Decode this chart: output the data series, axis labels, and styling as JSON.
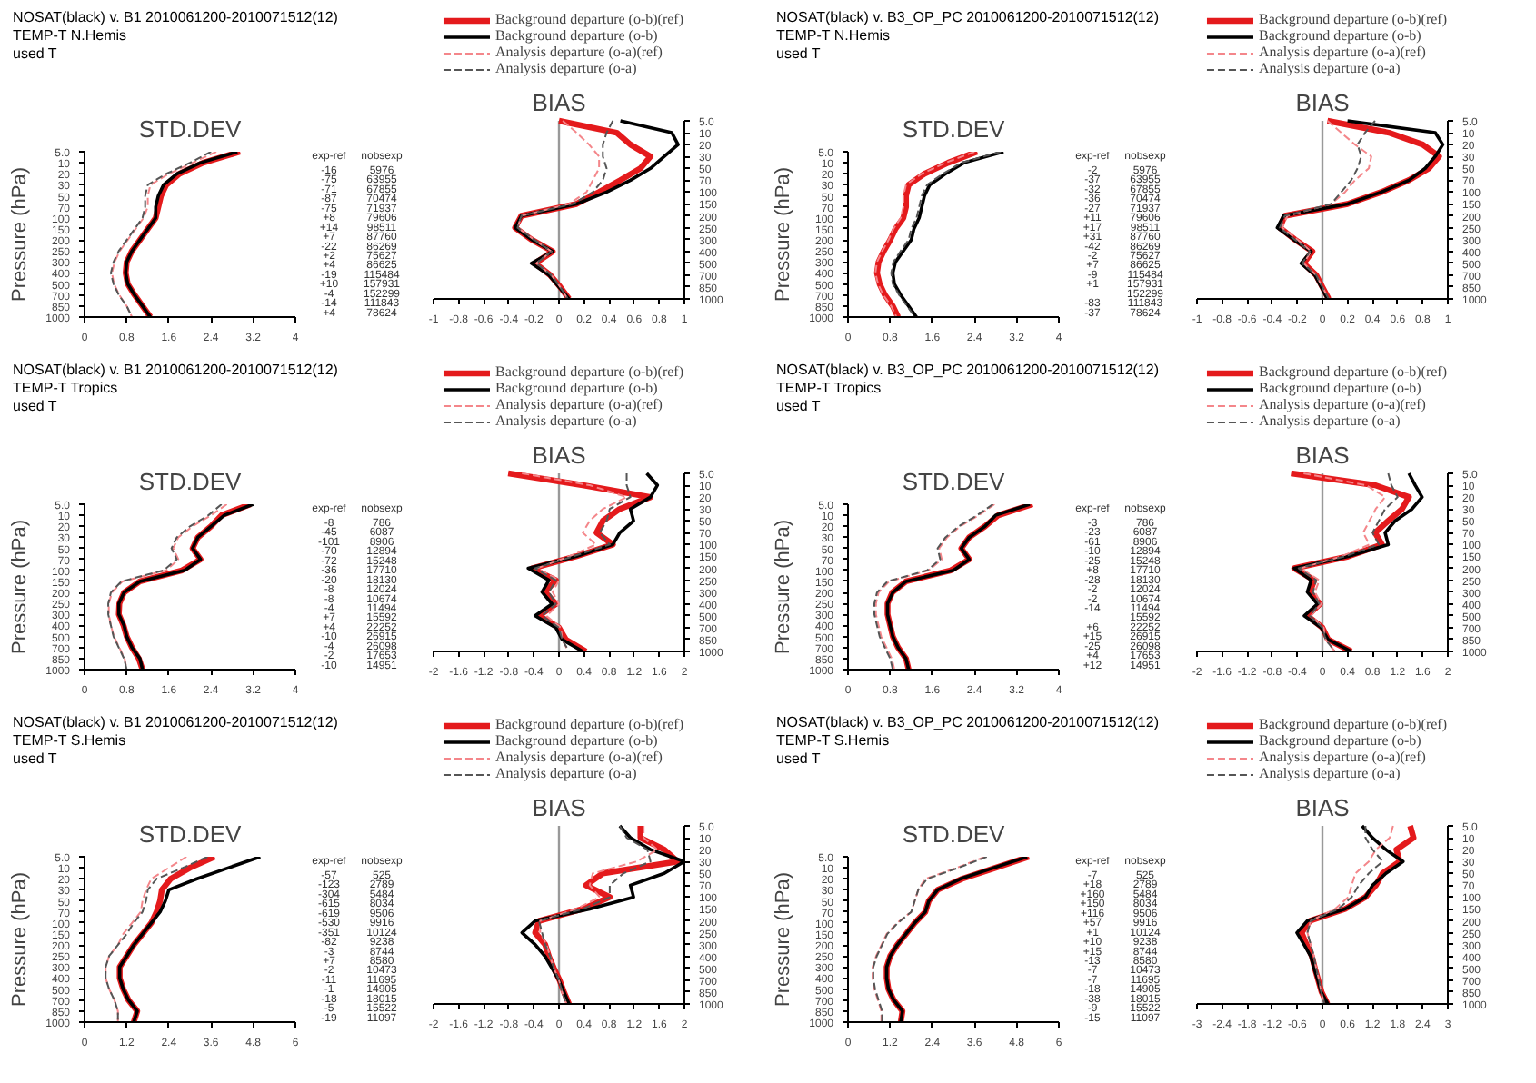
{
  "chart_data": [
    {
      "type": "other",
      "title": "NOSAT(black)  v. B1 2010061200-2010071512(12)",
      "subtitle": "TEMP-T  N.Hemis",
      "annotations": [
        "used T"
      ]
    },
    {
      "type": "line",
      "orientation": "horizontal",
      "title": "STD.DEV",
      "ylabel": "Pressure (hPa)",
      "categories": [
        "5.0",
        "10",
        "20",
        "30",
        "50",
        "70",
        "100",
        "150",
        "200",
        "250",
        "300",
        "400",
        "500",
        "700",
        "850",
        "1000"
      ],
      "xlim": [
        0,
        4
      ],
      "xticks": [
        0,
        0.8,
        1.6,
        2.4,
        3.2,
        4
      ],
      "series": [
        {
          "color": "#e41a1c",
          "line_style": "solid",
          "values": [
            2.95,
            2.25,
            1.8,
            1.55,
            1.45,
            1.4,
            1.35,
            1.2,
            1.05,
            0.9,
            0.8,
            0.78,
            0.82,
            0.95,
            1.1,
            1.25
          ]
        },
        {
          "color": "#000000",
          "line_style": "solid",
          "values": [
            2.9,
            2.2,
            1.75,
            1.5,
            1.4,
            1.35,
            1.35,
            1.2,
            1.05,
            0.9,
            0.8,
            0.78,
            0.82,
            0.95,
            1.1,
            1.25
          ]
        },
        {
          "color": "#f4868a",
          "line_style": "dashed",
          "values": [
            2.5,
            2.05,
            1.6,
            1.25,
            1.2,
            1.2,
            1.12,
            0.97,
            0.82,
            0.67,
            0.57,
            0.52,
            0.56,
            0.66,
            0.8,
            0.9
          ]
        },
        {
          "color": "#555555",
          "line_style": "dashed",
          "values": [
            2.4,
            2.0,
            1.55,
            1.2,
            1.15,
            1.15,
            1.1,
            0.95,
            0.8,
            0.65,
            0.55,
            0.5,
            0.55,
            0.65,
            0.8,
            0.9
          ]
        }
      ]
    },
    {
      "type": "other",
      "categories": [
        "exp-ref",
        "nobsexp"
      ],
      "cell_labels": [
        [
          "-16",
          "5976"
        ],
        [
          "-75",
          "63955"
        ],
        [
          "-71",
          "67855"
        ],
        [
          "-87",
          "70474"
        ],
        [
          "-75",
          "71937"
        ],
        [
          "+8",
          "79606"
        ],
        [
          "+14",
          "98511"
        ],
        [
          "+7",
          "87760"
        ],
        [
          "-22",
          "86269"
        ],
        [
          "+2",
          "75627"
        ],
        [
          "+4",
          "86625"
        ],
        [
          "-19",
          "115484"
        ],
        [
          "+10",
          "157931"
        ],
        [
          "-4",
          "152299"
        ],
        [
          "-14",
          "111843"
        ],
        [
          "+4",
          "78624"
        ]
      ]
    },
    {
      "type": "line",
      "orientation": "horizontal",
      "title": "BIAS",
      "legend": "top right",
      "categories": [
        "5.0",
        "10",
        "20",
        "30",
        "50",
        "70",
        "100",
        "150",
        "200",
        "250",
        "300",
        "400",
        "500",
        "700",
        "850",
        "1000"
      ],
      "xlim": [
        -1,
        1
      ],
      "xticks": [
        -1,
        -0.8,
        -0.6,
        -0.4,
        -0.2,
        0,
        0.2,
        0.4,
        0.6,
        0.8,
        1
      ],
      "ref_lines": [
        {
          "axis": "x",
          "value": 0,
          "color": "#999999"
        }
      ],
      "series": [
        {
          "name": "Background departure (o-b)(ref)",
          "color": "#e41a1c",
          "line_style": "solid",
          "values": [
            0,
            0.46,
            0.57,
            0.73,
            0.65,
            0.49,
            0.32,
            0.14,
            -0.3,
            -0.35,
            -0.22,
            -0.05,
            -0.19,
            -0.07,
            0.01,
            0.08
          ]
        },
        {
          "name": "Background departure (o-b)",
          "color": "#000000",
          "line_style": "solid",
          "values": [
            0.49,
            0.9,
            0.95,
            0.84,
            0.73,
            0.57,
            0.38,
            0.14,
            -0.3,
            -0.35,
            -0.22,
            -0.05,
            -0.22,
            -0.08,
            0,
            0.08
          ]
        },
        {
          "name": "Analysis departure (o-a)(ref)",
          "color": "#f4868a",
          "line_style": "dashed",
          "values": [
            0.03,
            0.14,
            0.24,
            0.32,
            0.32,
            0.27,
            0.22,
            0.08,
            -0.3,
            -0.33,
            -0.2,
            -0.06,
            -0.18,
            -0.06,
            0.01,
            0.07
          ]
        },
        {
          "name": "Analysis departure (o-a)",
          "color": "#555555",
          "line_style": "dashed",
          "values": [
            0.43,
            0.38,
            0.35,
            0.35,
            0.38,
            0.35,
            0.27,
            0.11,
            -0.3,
            -0.33,
            -0.2,
            -0.06,
            -0.18,
            -0.06,
            0.01,
            0.07
          ]
        }
      ]
    },
    {
      "type": "other",
      "title": "NOSAT(black)  v. B3_OP_PC 2010061200-2010071512(12)",
      "subtitle": "TEMP-T  N.Hemis",
      "annotations": [
        "used T"
      ]
    },
    {
      "type": "line",
      "orientation": "horizontal",
      "title": "STD.DEV",
      "ylabel": "Pressure (hPa)",
      "categories": [
        "5.0",
        "10",
        "20",
        "30",
        "50",
        "70",
        "100",
        "150",
        "200",
        "250",
        "300",
        "400",
        "500",
        "700",
        "850",
        "1000"
      ],
      "xlim": [
        0,
        4
      ],
      "xticks": [
        0,
        0.8,
        1.6,
        2.4,
        3.2,
        4
      ],
      "series": [
        {
          "color": "#e41a1c",
          "line_style": "solid",
          "values": [
            2.45,
            1.9,
            1.45,
            1.15,
            1.1,
            1.1,
            1.05,
            0.9,
            0.8,
            0.68,
            0.58,
            0.55,
            0.6,
            0.7,
            0.85,
            0.95
          ]
        },
        {
          "color": "#000000",
          "line_style": "solid",
          "values": [
            2.95,
            2.2,
            1.85,
            1.55,
            1.45,
            1.4,
            1.35,
            1.25,
            1.2,
            1.05,
            0.9,
            0.85,
            0.88,
            1.0,
            1.15,
            1.3
          ]
        },
        {
          "color": "#f4868a",
          "line_style": "dashed",
          "values": [
            2.4,
            1.85,
            1.4,
            1.1,
            1.05,
            1.05,
            1.0,
            0.86,
            0.77,
            0.65,
            0.55,
            0.52,
            0.57,
            0.67,
            0.82,
            0.92
          ]
        },
        {
          "color": "#555555",
          "line_style": "dashed",
          "values": [
            2.9,
            2.15,
            1.8,
            1.5,
            1.4,
            1.35,
            1.3,
            1.2,
            1.15,
            1.0,
            0.86,
            0.82,
            0.85,
            0.97,
            1.12,
            1.27
          ]
        }
      ]
    },
    {
      "type": "other",
      "categories": [
        "exp-ref",
        "nobsexp"
      ],
      "cell_labels": [
        [
          "-2",
          "5976"
        ],
        [
          "-37",
          "63955"
        ],
        [
          "-32",
          "67855"
        ],
        [
          "-36",
          "70474"
        ],
        [
          "-27",
          "71937"
        ],
        [
          "+11",
          "79606"
        ],
        [
          "+17",
          "98511"
        ],
        [
          "+31",
          "87760"
        ],
        [
          "-42",
          "86269"
        ],
        [
          "-2",
          "75627"
        ],
        [
          "+7",
          "86625"
        ],
        [
          "-9",
          "115484"
        ],
        [
          "+1",
          "157931"
        ],
        [
          null,
          "152299"
        ],
        [
          "-83",
          "111843"
        ],
        [
          "-37",
          "78624"
        ]
      ]
    },
    {
      "type": "line",
      "orientation": "horizontal",
      "title": "BIAS",
      "legend": "top right",
      "categories": [
        "5.0",
        "10",
        "20",
        "30",
        "50",
        "70",
        "100",
        "150",
        "200",
        "250",
        "300",
        "400",
        "500",
        "700",
        "850",
        "1000"
      ],
      "xlim": [
        -1,
        1
      ],
      "xticks": [
        -1,
        -0.8,
        -0.6,
        -0.4,
        -0.2,
        0,
        0.2,
        0.4,
        0.6,
        0.8,
        1
      ],
      "ref_lines": [
        {
          "axis": "x",
          "value": 0,
          "color": "#999999"
        }
      ],
      "series": [
        {
          "name": "Background departure (o-b)(ref)",
          "color": "#e41a1c",
          "line_style": "solid",
          "values": [
            0.04,
            0.53,
            0.8,
            0.93,
            0.85,
            0.69,
            0.47,
            0.2,
            -0.3,
            -0.34,
            -0.22,
            -0.08,
            -0.15,
            -0.05,
            0,
            0.05
          ]
        },
        {
          "name": "Background departure (o-b)",
          "color": "#000000",
          "line_style": "solid",
          "values": [
            0.2,
            0.9,
            0.96,
            0.9,
            0.82,
            0.69,
            0.47,
            0.2,
            -0.31,
            -0.36,
            -0.23,
            -0.09,
            -0.17,
            -0.06,
            -0.01,
            0.04
          ]
        },
        {
          "name": "Analysis departure (o-a)(ref)",
          "color": "#f4868a",
          "line_style": "dashed",
          "values": [
            0.04,
            0.15,
            0.26,
            0.39,
            0.37,
            0.26,
            0.18,
            0.07,
            -0.28,
            -0.32,
            -0.2,
            -0.09,
            -0.15,
            -0.05,
            0,
            0.05
          ]
        },
        {
          "name": "Analysis departure (o-a)",
          "color": "#555555",
          "line_style": "dashed",
          "values": [
            0.42,
            0.34,
            0.28,
            0.31,
            0.28,
            0.23,
            0.15,
            0.07,
            -0.3,
            -0.34,
            -0.22,
            -0.1,
            -0.16,
            -0.05,
            0,
            0.05
          ]
        }
      ]
    },
    {
      "type": "other",
      "title": "NOSAT(black)  v. B1 2010061200-2010071512(12)",
      "subtitle": "TEMP-T  Tropics",
      "annotations": [
        "used T"
      ]
    },
    {
      "type": "line",
      "orientation": "horizontal",
      "title": "STD.DEV",
      "ylabel": "Pressure (hPa)",
      "categories": [
        "5.0",
        "10",
        "20",
        "30",
        "50",
        "70",
        "100",
        "150",
        "200",
        "250",
        "300",
        "400",
        "500",
        "700",
        "850",
        "1000"
      ],
      "xlim": [
        0,
        4
      ],
      "xticks": [
        0,
        0.8,
        1.6,
        2.4,
        3.2,
        4
      ],
      "series": [
        {
          "color": "#e41a1c",
          "line_style": "solid",
          "values": [
            3.15,
            2.6,
            2.4,
            2.15,
            2.05,
            2.2,
            1.85,
            1.05,
            0.75,
            0.66,
            0.65,
            0.74,
            0.8,
            0.9,
            1.03,
            1.1
          ]
        },
        {
          "color": "#000000",
          "line_style": "solid",
          "values": [
            3.2,
            2.65,
            2.4,
            2.15,
            2.05,
            2.2,
            1.9,
            1.05,
            0.75,
            0.65,
            0.65,
            0.75,
            0.8,
            0.9,
            1.05,
            1.1
          ]
        },
        {
          "color": "#f4868a",
          "line_style": "dashed",
          "values": [
            2.7,
            2.4,
            2.05,
            1.78,
            1.68,
            1.78,
            1.55,
            0.72,
            0.52,
            0.46,
            0.46,
            0.5,
            0.56,
            0.66,
            0.76,
            0.8
          ]
        },
        {
          "color": "#555555",
          "line_style": "dashed",
          "values": [
            2.6,
            2.35,
            2.0,
            1.75,
            1.65,
            1.75,
            1.5,
            0.7,
            0.5,
            0.45,
            0.45,
            0.5,
            0.55,
            0.65,
            0.75,
            0.8
          ]
        }
      ]
    },
    {
      "type": "other",
      "categories": [
        "exp-ref",
        "nobsexp"
      ],
      "cell_labels": [
        [
          "-8",
          "786"
        ],
        [
          "-45",
          "6087"
        ],
        [
          "-101",
          "8906"
        ],
        [
          "-70",
          "12894"
        ],
        [
          "-72",
          "15248"
        ],
        [
          "-36",
          "17710"
        ],
        [
          "-20",
          "18130"
        ],
        [
          "-8",
          "12024"
        ],
        [
          "-8",
          "10674"
        ],
        [
          "-4",
          "11494"
        ],
        [
          "+7",
          "15592"
        ],
        [
          "+4",
          "22252"
        ],
        [
          "-10",
          "26915"
        ],
        [
          "-4",
          "26098"
        ],
        [
          "-2",
          "17653"
        ],
        [
          "-10",
          "14951"
        ]
      ]
    },
    {
      "type": "line",
      "orientation": "horizontal",
      "title": "BIAS",
      "legend": "top right",
      "categories": [
        "5.0",
        "10",
        "20",
        "30",
        "50",
        "70",
        "100",
        "150",
        "200",
        "250",
        "300",
        "400",
        "500",
        "700",
        "850",
        "1000"
      ],
      "xlim": [
        -2,
        2
      ],
      "xticks": [
        -2,
        -1.6,
        -1.2,
        -0.8,
        -0.4,
        0,
        0.4,
        0.8,
        1.2,
        1.6,
        2
      ],
      "ref_lines": [
        {
          "axis": "x",
          "value": 0,
          "color": "#999999"
        }
      ],
      "series": [
        {
          "name": "Background departure (o-b)(ref)",
          "color": "#e41a1c",
          "line_style": "solid",
          "values": [
            -0.81,
            0.38,
            1.46,
            0.97,
            0.7,
            0.6,
            0.86,
            0.27,
            -0.43,
            -0.05,
            -0.22,
            -0.05,
            -0.32,
            0,
            0.11,
            0.43
          ]
        },
        {
          "name": "Background departure (o-b)",
          "color": "#000000",
          "line_style": "solid",
          "values": [
            1.4,
            1.57,
            1.46,
            1.14,
            1.19,
            0.97,
            0.86,
            0.27,
            -0.49,
            -0.16,
            -0.27,
            -0.11,
            -0.38,
            -0.05,
            0.05,
            0.38
          ]
        },
        {
          "name": "Analysis departure (o-a)(ref)",
          "color": "#f4868a",
          "line_style": "dashed",
          "values": [
            -0.59,
            0.49,
            1.08,
            0.7,
            0.49,
            0.38,
            0.59,
            0.16,
            -0.35,
            0,
            -0.1,
            0,
            -0.2,
            0.03,
            0.05,
            0.15
          ]
        },
        {
          "name": "Analysis departure (o-a)",
          "color": "#555555",
          "line_style": "dashed",
          "values": [
            1.08,
            1.08,
            1.14,
            0.81,
            0.76,
            0.65,
            0.81,
            0.22,
            -0.38,
            -0.05,
            -0.16,
            -0.05,
            -0.27,
            0,
            0.05,
            0.16
          ]
        }
      ]
    },
    {
      "type": "other",
      "title": "NOSAT(black)  v. B3_OP_PC 2010061200-2010071512(12)",
      "subtitle": "TEMP-T  Tropics",
      "annotations": [
        "used T"
      ]
    },
    {
      "type": "line",
      "orientation": "horizontal",
      "title": "STD.DEV",
      "ylabel": "Pressure (hPa)",
      "categories": [
        "5.0",
        "10",
        "20",
        "30",
        "50",
        "70",
        "100",
        "150",
        "200",
        "250",
        "300",
        "400",
        "500",
        "700",
        "850",
        "1000"
      ],
      "xlim": [
        0,
        4
      ],
      "xticks": [
        0,
        0.8,
        1.6,
        2.4,
        3.2,
        4
      ],
      "series": [
        {
          "color": "#e41a1c",
          "line_style": "solid",
          "values": [
            3.5,
            2.85,
            2.6,
            2.3,
            2.15,
            2.3,
            1.95,
            1.1,
            0.84,
            0.75,
            0.75,
            0.8,
            0.85,
            0.95,
            1.1,
            1.15
          ]
        },
        {
          "color": "#000000",
          "line_style": "solid",
          "values": [
            3.45,
            2.8,
            2.6,
            2.3,
            2.15,
            2.3,
            2.0,
            1.1,
            0.85,
            0.75,
            0.75,
            0.8,
            0.85,
            0.95,
            1.1,
            1.15
          ]
        },
        {
          "color": "#f4868a",
          "line_style": "dashed",
          "values": [
            2.78,
            2.48,
            2.13,
            1.88,
            1.73,
            1.78,
            1.53,
            0.78,
            0.58,
            0.53,
            0.53,
            0.58,
            0.63,
            0.73,
            0.83,
            0.88
          ]
        },
        {
          "color": "#555555",
          "line_style": "dashed",
          "values": [
            2.75,
            2.45,
            2.1,
            1.85,
            1.7,
            1.75,
            1.5,
            0.75,
            0.55,
            0.5,
            0.5,
            0.55,
            0.6,
            0.7,
            0.8,
            0.85
          ]
        }
      ]
    },
    {
      "type": "other",
      "categories": [
        "exp-ref",
        "nobsexp"
      ],
      "cell_labels": [
        [
          "-3",
          "786"
        ],
        [
          "-23",
          "6087"
        ],
        [
          "-61",
          "8906"
        ],
        [
          "-10",
          "12894"
        ],
        [
          "-25",
          "15248"
        ],
        [
          "+8",
          "17710"
        ],
        [
          "-28",
          "18130"
        ],
        [
          "-2",
          "12024"
        ],
        [
          "-2",
          "10674"
        ],
        [
          "-14",
          "11494"
        ],
        [
          null,
          "15592"
        ],
        [
          "+6",
          "22252"
        ],
        [
          "+15",
          "26915"
        ],
        [
          "-25",
          "26098"
        ],
        [
          "+4",
          "17653"
        ],
        [
          "+12",
          "14951"
        ]
      ]
    },
    {
      "type": "line",
      "orientation": "horizontal",
      "title": "BIAS",
      "legend": "top right",
      "categories": [
        "5.0",
        "10",
        "20",
        "30",
        "50",
        "70",
        "100",
        "150",
        "200",
        "250",
        "300",
        "400",
        "500",
        "700",
        "850",
        "1000"
      ],
      "xlim": [
        -2,
        2
      ],
      "xticks": [
        -2,
        -1.6,
        -1.2,
        -0.8,
        -0.4,
        0,
        0.4,
        0.8,
        1.2,
        1.6,
        2
      ],
      "ref_lines": [
        {
          "axis": "x",
          "value": 0,
          "color": "#999999"
        }
      ],
      "series": [
        {
          "name": "Background departure (o-b)(ref)",
          "color": "#e41a1c",
          "line_style": "solid",
          "values": [
            -0.5,
            0.84,
            1.38,
            1.27,
            1.05,
            0.84,
            0.95,
            0.41,
            -0.45,
            -0.13,
            -0.2,
            -0.04,
            -0.24,
            0,
            0.09,
            0.46
          ]
        },
        {
          "name": "Background departure (o-b)",
          "color": "#000000",
          "line_style": "solid",
          "values": [
            1.38,
            1.48,
            1.59,
            1.43,
            1.16,
            1.0,
            1.05,
            0.41,
            -0.45,
            -0.18,
            -0.24,
            -0.08,
            -0.29,
            -0.02,
            0.09,
            0.46
          ]
        },
        {
          "name": "Analysis departure (o-a)(ref)",
          "color": "#f4868a",
          "line_style": "dashed",
          "values": [
            -0.3,
            0.7,
            1.0,
            0.85,
            0.75,
            0.65,
            0.75,
            0.3,
            -0.35,
            -0.05,
            -0.12,
            -0.02,
            -0.18,
            0.02,
            0.05,
            0.2
          ]
        },
        {
          "name": "Analysis departure (o-a)",
          "color": "#555555",
          "line_style": "dashed",
          "values": [
            1.05,
            1.1,
            1.2,
            1.0,
            0.9,
            0.8,
            0.9,
            0.35,
            -0.38,
            -0.1,
            -0.15,
            -0.05,
            -0.2,
            0,
            0.05,
            0.2
          ]
        }
      ]
    },
    {
      "type": "other",
      "title": "NOSAT(black)  v. B1 2010061200-2010071512(12)",
      "subtitle": "TEMP-T  S.Hemis",
      "annotations": [
        "used T"
      ]
    },
    {
      "type": "line",
      "orientation": "horizontal",
      "title": "STD.DEV",
      "ylabel": "Pressure (hPa)",
      "categories": [
        "5.0",
        "10",
        "20",
        "30",
        "50",
        "70",
        "100",
        "150",
        "200",
        "250",
        "300",
        "400",
        "500",
        "700",
        "850",
        "1000"
      ],
      "xlim": [
        0,
        6
      ],
      "xticks": [
        0,
        1.2,
        2.4,
        3.6,
        4.8,
        6
      ],
      "series": [
        {
          "color": "#e41a1c",
          "line_style": "solid",
          "values": [
            3.7,
            3.0,
            2.45,
            2.2,
            2.15,
            2.05,
            1.9,
            1.65,
            1.4,
            1.2,
            1.0,
            1.0,
            1.1,
            1.25,
            1.5,
            1.4
          ]
        },
        {
          "color": "#000000",
          "line_style": "solid",
          "values": [
            5.0,
            4.1,
            3.2,
            2.4,
            2.3,
            2.15,
            1.9,
            1.65,
            1.4,
            1.2,
            1.0,
            1.0,
            1.1,
            1.25,
            1.5,
            1.4
          ]
        },
        {
          "color": "#f4868a",
          "line_style": "dashed",
          "values": [
            2.9,
            2.4,
            1.9,
            1.75,
            1.65,
            1.6,
            1.35,
            1.1,
            0.95,
            0.7,
            0.6,
            0.6,
            0.7,
            0.85,
            0.95,
            0.95
          ]
        },
        {
          "color": "#555555",
          "line_style": "dashed",
          "values": [
            3.5,
            2.8,
            2.05,
            1.8,
            1.75,
            1.65,
            1.4,
            1.2,
            0.95,
            0.7,
            0.6,
            0.6,
            0.7,
            0.85,
            0.95,
            0.95
          ]
        }
      ]
    },
    {
      "type": "other",
      "categories": [
        "exp-ref",
        "nobsexp"
      ],
      "cell_labels": [
        [
          "-57",
          "525"
        ],
        [
          "-123",
          "2789"
        ],
        [
          "-304",
          "5484"
        ],
        [
          "-615",
          "8034"
        ],
        [
          "-619",
          "9506"
        ],
        [
          "-530",
          "9916"
        ],
        [
          "-351",
          "10124"
        ],
        [
          "-82",
          "9238"
        ],
        [
          "-3",
          "8744"
        ],
        [
          "+7",
          "8580"
        ],
        [
          "-2",
          "10473"
        ],
        [
          "-11",
          "11695"
        ],
        [
          "-1",
          "14905"
        ],
        [
          "-18",
          "18015"
        ],
        [
          "-5",
          "15522"
        ],
        [
          "-19",
          "11097"
        ]
      ]
    },
    {
      "type": "line",
      "orientation": "horizontal",
      "title": "BIAS",
      "legend": "top right",
      "categories": [
        "5.0",
        "10",
        "20",
        "30",
        "50",
        "70",
        "100",
        "150",
        "200",
        "250",
        "300",
        "400",
        "500",
        "700",
        "850",
        "1000"
      ],
      "xlim": [
        -2,
        2
      ],
      "xticks": [
        -2,
        -1.6,
        -1.2,
        -0.8,
        -0.4,
        0,
        0.4,
        0.8,
        1.2,
        1.6,
        2
      ],
      "ref_lines": [
        {
          "axis": "x",
          "value": 0,
          "color": "#999999"
        }
      ],
      "series": [
        {
          "name": "Background departure (o-b)(ref)",
          "color": "#e41a1c",
          "line_style": "solid",
          "values": [
            1.3,
            1.3,
            1.68,
            1.89,
            0.7,
            0.43,
            0.81,
            0.38,
            -0.32,
            -0.38,
            -0.22,
            -0.16,
            -0.08,
            0.01,
            0.08,
            0.16
          ]
        },
        {
          "name": "Background departure (o-b)",
          "color": "#000000",
          "line_style": "solid",
          "values": [
            0.97,
            1.14,
            1.46,
            2.0,
            1.68,
            1.14,
            1.19,
            0.49,
            -0.38,
            -0.59,
            -0.38,
            -0.22,
            -0.11,
            0,
            0.08,
            0.16
          ]
        },
        {
          "name": "Analysis departure (o-a)(ref)",
          "color": "#f4868a",
          "line_style": "dashed",
          "values": [
            1.35,
            1.35,
            1.57,
            1.24,
            0.54,
            0.49,
            0.65,
            0.27,
            -0.3,
            -0.3,
            -0.2,
            -0.14,
            -0.08,
            0,
            0.05,
            0.12
          ]
        },
        {
          "name": "Analysis departure (o-a)",
          "color": "#555555",
          "line_style": "dashed",
          "values": [
            0.97,
            1.08,
            1.41,
            1.46,
            1.03,
            0.81,
            0.81,
            0.38,
            -0.32,
            -0.27,
            -0.22,
            -0.14,
            -0.08,
            0,
            0.05,
            0.12
          ]
        }
      ]
    },
    {
      "type": "other",
      "title": "NOSAT(black)  v. B3_OP_PC 2010061200-2010071512(12)",
      "subtitle": "TEMP-T  S.Hemis",
      "annotations": [
        "used T"
      ]
    },
    {
      "type": "line",
      "orientation": "horizontal",
      "title": "STD.DEV",
      "ylabel": "Pressure (hPa)",
      "categories": [
        "5.0",
        "10",
        "20",
        "30",
        "50",
        "70",
        "100",
        "150",
        "200",
        "250",
        "300",
        "400",
        "500",
        "700",
        "850",
        "1000"
      ],
      "xlim": [
        0,
        6
      ],
      "xticks": [
        0,
        1.2,
        2.4,
        3.6,
        4.8,
        6
      ],
      "series": [
        {
          "color": "#e41a1c",
          "line_style": "solid",
          "values": [
            5.15,
            4.2,
            3.25,
            2.55,
            2.3,
            2.2,
            1.9,
            1.65,
            1.4,
            1.2,
            1.1,
            1.1,
            1.15,
            1.3,
            1.55,
            1.5
          ]
        },
        {
          "color": "#000000",
          "line_style": "solid",
          "values": [
            5.1,
            4.15,
            3.2,
            2.55,
            2.3,
            2.2,
            1.9,
            1.65,
            1.4,
            1.2,
            1.1,
            1.1,
            1.15,
            1.3,
            1.55,
            1.5
          ]
        },
        {
          "color": "#f4868a",
          "line_style": "dashed",
          "values": [
            3.9,
            3.1,
            2.2,
            2.0,
            1.9,
            1.8,
            1.4,
            1.1,
            0.95,
            0.8,
            0.7,
            0.7,
            0.75,
            0.85,
            0.95,
            0.95
          ]
        },
        {
          "color": "#555555",
          "line_style": "dashed",
          "values": [
            3.95,
            3.15,
            2.25,
            2.0,
            1.9,
            1.8,
            1.42,
            1.12,
            0.97,
            0.82,
            0.72,
            0.72,
            0.77,
            0.87,
            0.97,
            0.97
          ]
        }
      ]
    },
    {
      "type": "other",
      "categories": [
        "exp-ref",
        "nobsexp"
      ],
      "cell_labels": [
        [
          "-7",
          "525"
        ],
        [
          "+18",
          "2789"
        ],
        [
          "+160",
          "5484"
        ],
        [
          "+150",
          "8034"
        ],
        [
          "+116",
          "9506"
        ],
        [
          "+57",
          "9916"
        ],
        [
          "+1",
          "10124"
        ],
        [
          "+10",
          "9238"
        ],
        [
          "+15",
          "8744"
        ],
        [
          "-13",
          "8580"
        ],
        [
          "-7",
          "10473"
        ],
        [
          "-7",
          "11695"
        ],
        [
          "-18",
          "14905"
        ],
        [
          "-38",
          "18015"
        ],
        [
          "-9",
          "15522"
        ],
        [
          "-15",
          "11097"
        ]
      ]
    },
    {
      "type": "line",
      "orientation": "horizontal",
      "title": "BIAS",
      "legend": "top right",
      "categories": [
        "5.0",
        "10",
        "20",
        "30",
        "50",
        "70",
        "100",
        "150",
        "200",
        "250",
        "300",
        "400",
        "500",
        "700",
        "850",
        "1000"
      ],
      "xlim": [
        -3,
        3
      ],
      "xticks": [
        -3,
        -2.4,
        -1.8,
        -1.2,
        -0.6,
        0,
        0.6,
        1.2,
        1.8,
        2.4,
        3
      ],
      "ref_lines": [
        {
          "axis": "x",
          "value": 0,
          "color": "#999999"
        }
      ],
      "series": [
        {
          "name": "Background departure (o-b)(ref)",
          "color": "#e41a1c",
          "line_style": "solid",
          "values": [
            2.1,
            2.18,
            1.77,
            1.85,
            1.44,
            1.28,
            1.03,
            0.54,
            -0.3,
            -0.5,
            -0.38,
            -0.25,
            -0.18,
            -0.1,
            -0.02,
            0.12
          ]
        },
        {
          "name": "Background departure (o-b)",
          "color": "#000000",
          "line_style": "solid",
          "values": [
            0.95,
            1.2,
            1.52,
            1.93,
            1.52,
            1.2,
            1.03,
            0.54,
            -0.36,
            -0.61,
            -0.44,
            -0.28,
            -0.2,
            -0.11,
            -0.03,
            0.13
          ]
        },
        {
          "name": "Analysis departure (o-a)(ref)",
          "color": "#f4868a",
          "line_style": "dashed",
          "values": [
            1.69,
            1.61,
            1.28,
            1.11,
            0.79,
            0.7,
            0.62,
            0.3,
            -0.28,
            -0.36,
            -0.28,
            -0.2,
            -0.15,
            -0.08,
            -0.03,
            0.05
          ]
        },
        {
          "name": "Analysis departure (o-a)",
          "color": "#555555",
          "line_style": "dashed",
          "values": [
            1.03,
            1.03,
            1.2,
            1.44,
            1.11,
            0.87,
            0.7,
            0.38,
            -0.28,
            -0.36,
            -0.28,
            -0.2,
            -0.15,
            -0.08,
            -0.03,
            0.05
          ]
        }
      ]
    }
  ]
}
